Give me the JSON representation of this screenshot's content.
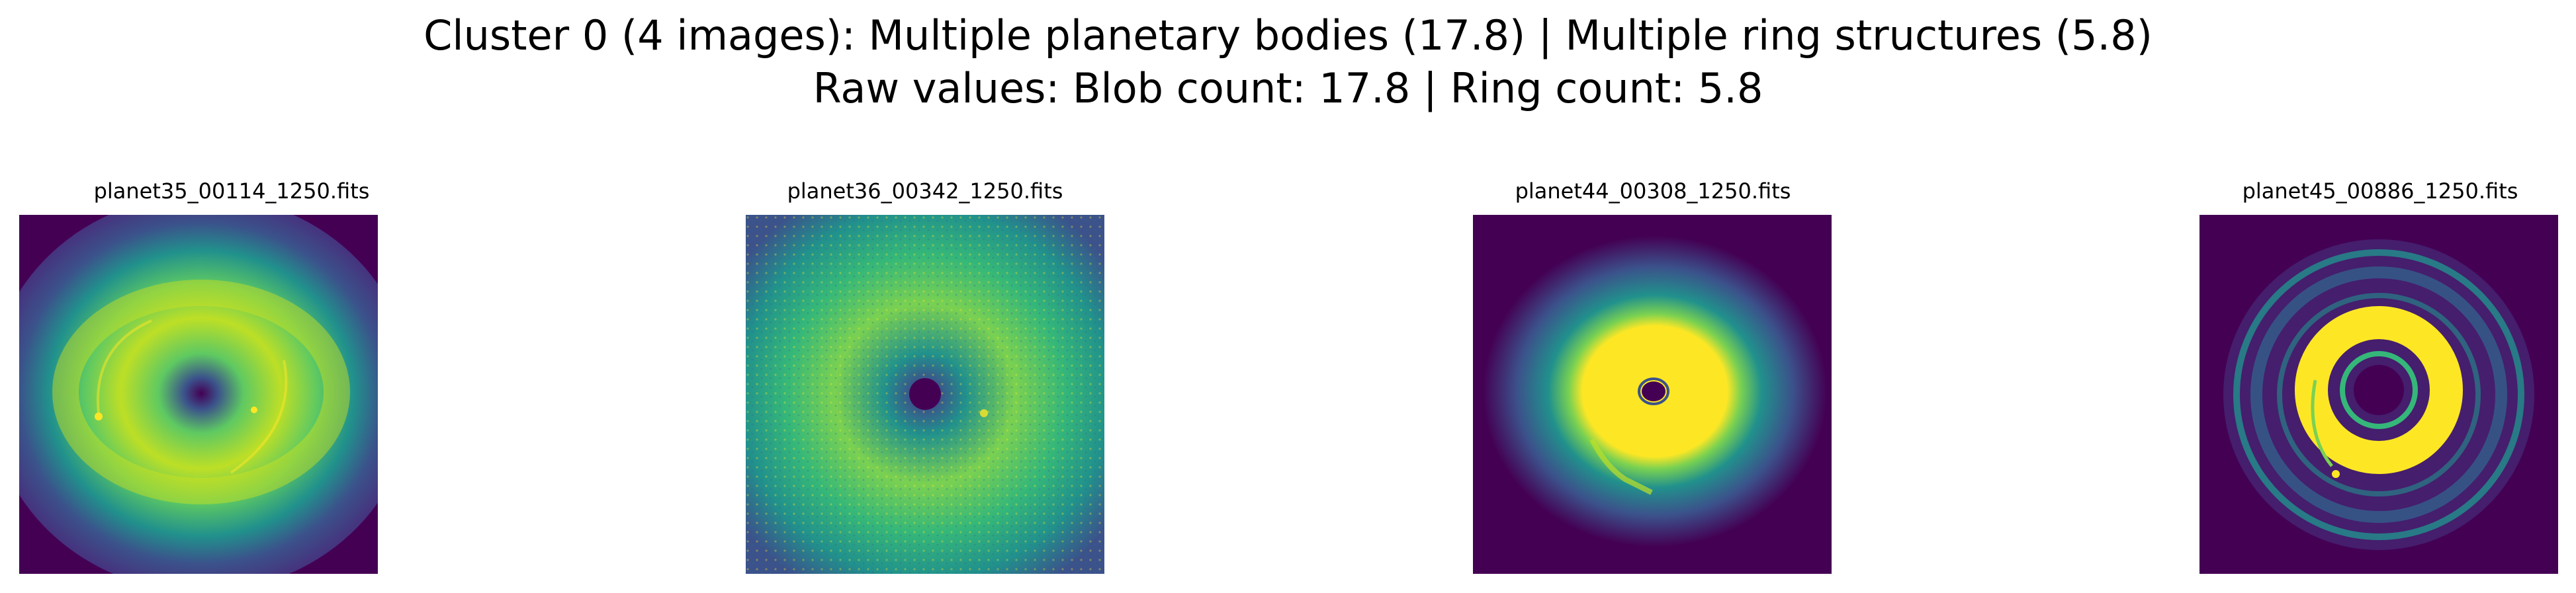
{
  "figure": {
    "title_line_1": "Cluster 0 (4 images): Multiple planetary bodies (17.8) | Multiple ring structures (5.8)",
    "title_line_2": "Raw values: Blob count: 17.8 | Ring count: 5.8"
  },
  "panels": [
    {
      "filename": "planet35_00114_1250.fits",
      "image_description": "viridis image of a planet-forming disk: broad yellow-green ring around a dark central hole, faint spiral arms, small bright spot on the left inner edge"
    },
    {
      "filename": "planet36_00342_1250.fits",
      "image_description": "viridis image of a disk with a speckled, turbulent green-yellow texture and a dark compact center"
    },
    {
      "filename": "planet44_00308_1250.fits",
      "image_description": "viridis image of a disk with a saturated yellow inner disk, small dark central cavity and a faint tail toward the lower left"
    },
    {
      "filename": "planet45_00886_1250.fits",
      "image_description": "viridis image of a disk with a bright yellow inner ring, a narrow gap and several thin outer rings"
    }
  ],
  "colors": {
    "background": "#ffffff",
    "viridis_dark": "#440154",
    "viridis_blue": "#3b528b",
    "viridis_teal": "#21918c",
    "viridis_green": "#5ec962",
    "viridis_yellow": "#fde725"
  }
}
